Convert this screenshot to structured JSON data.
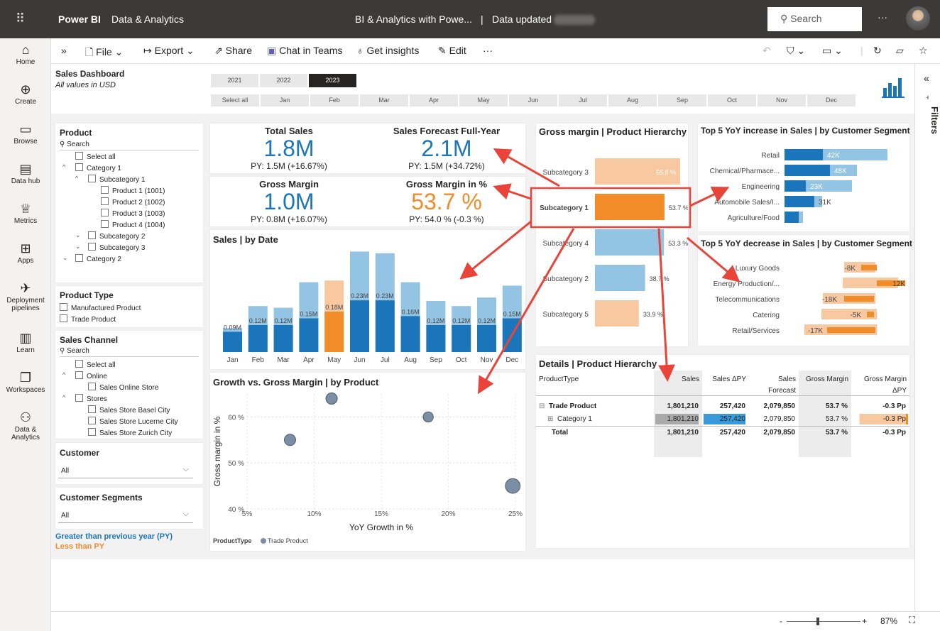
{
  "topbar": {
    "brand": "Power BI",
    "workspace": "Data & Analytics",
    "report_title": "BI & Analytics with Powe...",
    "separator": "|",
    "data_updated": "Data updated",
    "search_placeholder": "Search",
    "more": "···"
  },
  "leftnav": [
    {
      "icon": "⌂",
      "label": "Home"
    },
    {
      "icon": "⊕",
      "label": "Create"
    },
    {
      "icon": "▭",
      "label": "Browse"
    },
    {
      "icon": "▤",
      "label": "Data hub"
    },
    {
      "icon": "♕",
      "label": "Metrics"
    },
    {
      "icon": "⊞",
      "label": "Apps"
    },
    {
      "icon": "✈",
      "label": "Deployment pipelines"
    },
    {
      "icon": "▥",
      "label": "Learn"
    },
    {
      "icon": "❐",
      "label": "Workspaces"
    },
    {
      "icon": "⚇",
      "label": "Data & Analytics"
    }
  ],
  "toolbar": {
    "expand": "»",
    "file": "File",
    "export": "Export",
    "share": "Share",
    "chat": "Chat in Teams",
    "insights": "Get insights",
    "edit": "Edit",
    "more": "···"
  },
  "header": {
    "title": "Sales Dashboard",
    "subtitle": "All values in USD"
  },
  "years": [
    "2021",
    "2022",
    "2023"
  ],
  "months": [
    "Select all",
    "Jan",
    "Feb",
    "Mar",
    "Apr",
    "May",
    "Jun",
    "Jul",
    "Aug",
    "Sep",
    "Oct",
    "Nov",
    "Dec"
  ],
  "product_slicer": {
    "title": "Product",
    "search": "Search",
    "items": [
      "Select all",
      "Category 1",
      "Subcategory 1",
      "Product 1 (1001)",
      "Product 2 (1002)",
      "Product 3 (1003)",
      "Product 4 (1004)",
      "Subcategory 2",
      "Subcategory 3",
      "Category 2"
    ]
  },
  "product_type": {
    "title": "Product Type",
    "items": [
      "Manufactured Product",
      "Trade Product"
    ]
  },
  "sales_channel": {
    "title": "Sales Channel",
    "search": "Search",
    "items": [
      "Select all",
      "Online",
      "Sales Online Store",
      "Stores",
      "Sales Store Basel City",
      "Sales Store Lucerne City",
      "Sales Store Zurich City"
    ]
  },
  "customer": {
    "title": "Customer",
    "value": "All"
  },
  "segments": {
    "title": "Customer Segments",
    "value": "All"
  },
  "legend_notes": {
    "greater": "Greater than previous year (PY)",
    "less": "Less than PY"
  },
  "kpis": [
    {
      "title": "Total Sales",
      "value": "1.8M",
      "sub": "PY: 1.5M (+16.67%)"
    },
    {
      "title": "Sales Forecast Full-Year",
      "value": "2.1M",
      "sub": "PY: 1.5M (+34.72%)"
    },
    {
      "title": "Gross Margin",
      "value": "1.0M",
      "sub": "PY: 0.8M (+16.07%)"
    },
    {
      "title": "Gross Margin in %",
      "value": "53.7 %",
      "sub": "PY: 54.0 % (-0.3 %)"
    }
  ],
  "colors": {
    "blue": "#1b75bb",
    "light_blue": "#93c4e3",
    "orange": "#f28c28",
    "light_orange": "#f8c9a0",
    "dark": "#252423"
  },
  "chart_data": [
    {
      "type": "bar",
      "title": "Sales | by Date",
      "categories": [
        "Jan",
        "Feb",
        "Mar",
        "Apr",
        "May",
        "Jun",
        "Jul",
        "Aug",
        "Sep",
        "Oct",
        "Nov",
        "Dec"
      ],
      "labels": [
        "0.09M",
        "0.12M",
        "0.12M",
        "0.15M",
        "0.18M",
        "0.23M",
        "0.23M",
        "0.16M",
        "0.12M",
        "0.12M",
        "0.12M",
        "0.15M"
      ],
      "cy_visible_months": 7,
      "series": [
        {
          "values": [
            0.09,
            0.12,
            0.12,
            0.15,
            0.18,
            0.23,
            0.23,
            0.16,
            0.12,
            0.12,
            0.12,
            0.15
          ]
        },
        {
          "values": [
            0.05,
            0.15,
            0.14,
            0.26,
            0.24,
            0.36,
            0.35,
            0.25,
            0.18,
            0.15,
            0.2,
            0.24
          ]
        }
      ],
      "highlight": "May"
    },
    {
      "type": "bar",
      "title": "Gross margin | Product Hierarchy",
      "categories": [
        "Subcategory 3",
        "Subcategory 1",
        "Subcategory 4",
        "Subcategory 2",
        "Subcategory 5"
      ],
      "labels": [
        "65.8 %",
        "53.7 %",
        "53.3 %",
        "38.7 %",
        "33.9 %"
      ],
      "values": [
        65.8,
        53.7,
        53.3,
        38.7,
        33.9
      ]
    },
    {
      "type": "bar",
      "title": "Top 5 YoY increase in Sales | by Customer Segment",
      "categories": [
        "Retail",
        "Chemical/Pharmace...",
        "Engineering",
        "Automobile Sales/I...",
        "Agriculture/Food"
      ],
      "labels": [
        "42K",
        "48K",
        "23K",
        "31K",
        "15K"
      ],
      "values": [
        42,
        48,
        23,
        31,
        15
      ]
    },
    {
      "type": "bar",
      "title": "Top 5 YoY decrease in Sales | by Customer Segment",
      "categories": [
        "Luxury Goods",
        "Energy Production/...",
        "Telecommunications",
        "Catering",
        "Retail/Services"
      ],
      "labels": [
        "-8K",
        "12K",
        "-18K",
        "-5K",
        "-17K"
      ],
      "values": [
        -8,
        12,
        -18,
        -5,
        -17
      ]
    },
    {
      "type": "scatter",
      "title": "Growth vs. Gross Margin | by Product",
      "xlabel": "YoY Growth in %",
      "ylabel": "Gross margin in %",
      "xticks": [
        "5%",
        "10%",
        "15%",
        "20%",
        "25%"
      ],
      "yticks": [
        "40 %",
        "50 %",
        "60 %"
      ],
      "xlim": [
        5,
        25
      ],
      "ylim": [
        40,
        65
      ],
      "points": [
        [
          8.2,
          55,
          1
        ],
        [
          11.3,
          64,
          1
        ],
        [
          18.5,
          60,
          0.9
        ],
        [
          24.8,
          45,
          1.3
        ]
      ],
      "legend_title": "ProductType",
      "legend_item": "Trade Product"
    }
  ],
  "details": {
    "title": "Details | Product Hierarchy",
    "headers": [
      "ProductType",
      "Sales",
      "Sales ΔPY",
      "Sales Forecast",
      "Gross Margin",
      "Gross Margin ΔPY"
    ],
    "rows": [
      {
        "name": "Trade Product",
        "values": [
          "1,801,210",
          "257,420",
          "2,079,850",
          "53.7 %",
          "-0.3 Pp"
        ]
      },
      {
        "name": "Category 1",
        "values": [
          "1,801,210",
          "257,420",
          "2,079,850",
          "53.7 %",
          "-0.3 Pp"
        ]
      },
      {
        "name": "Total",
        "values": [
          "1,801,210",
          "257,420",
          "2,079,850",
          "53.7 %",
          "-0.3 Pp"
        ]
      }
    ]
  },
  "rightbar": {
    "collapse": "«",
    "label": "Filters"
  },
  "status": {
    "minus": "-",
    "plus": "+",
    "zoom": "87%"
  }
}
